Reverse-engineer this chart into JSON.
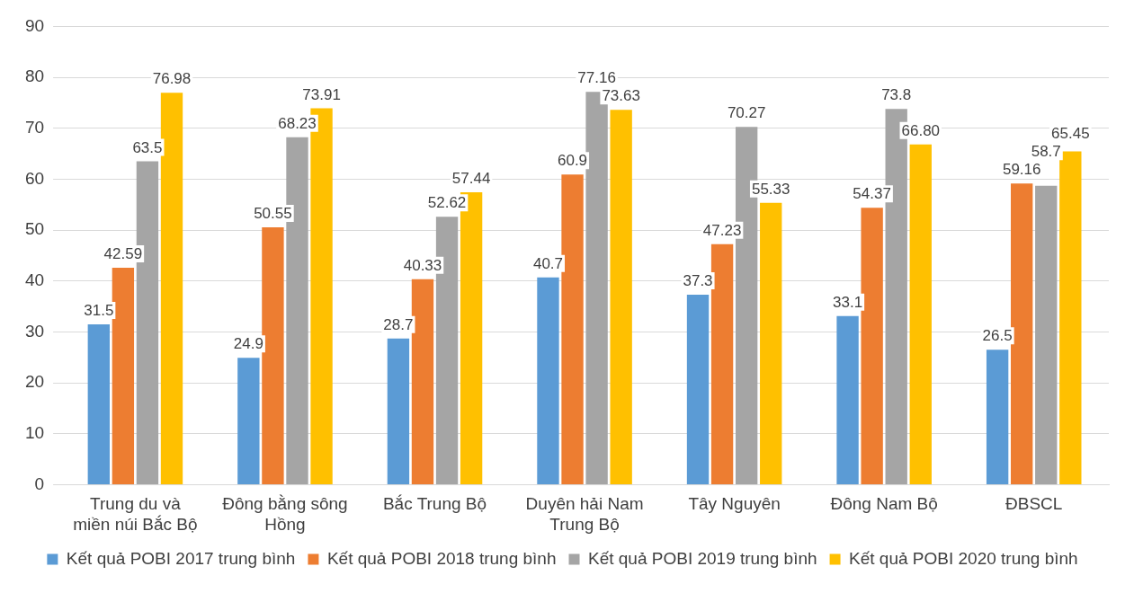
{
  "chart_data": {
    "type": "bar",
    "categories": [
      "Trung du và miền núi Bắc Bộ",
      "Đông bằng sông Hồng",
      "Bắc Trung Bộ",
      "Duyên hải Nam Trung Bộ",
      "Tây Nguyên",
      "Đông Nam Bộ",
      "ĐBSCL"
    ],
    "series": [
      {
        "name": "Kết quả POBI 2017 trung bình",
        "color": "#5b9bd5",
        "values": [
          31.5,
          24.9,
          28.7,
          40.7,
          37.3,
          33.1,
          26.5
        ],
        "value_labels": [
          "31.5",
          "24.9",
          "28.7",
          "40.7",
          "37.3",
          "33.1",
          "26.5"
        ]
      },
      {
        "name": "Kết quả POBI 2018 trung bình",
        "color": "#ed7d31",
        "values": [
          42.59,
          50.55,
          40.33,
          60.9,
          47.23,
          54.37,
          59.16
        ],
        "value_labels": [
          "42.59",
          "50.55",
          "40.33",
          "60.9",
          "47.23",
          "54.37",
          "59.16"
        ]
      },
      {
        "name": "Kết quả POBI 2019 trung bình",
        "color": "#a5a5a5",
        "values": [
          63.5,
          68.23,
          52.62,
          77.16,
          70.27,
          73.8,
          58.7
        ],
        "value_labels": [
          "63.5",
          "68.23",
          "52.62",
          "77.16",
          "70.27",
          "73.8",
          "58.7"
        ]
      },
      {
        "name": "Kết quả POBI 2020 trung bình",
        "color": "#ffc000",
        "values": [
          76.98,
          73.91,
          57.44,
          73.63,
          55.33,
          66.8,
          65.45
        ],
        "value_labels": [
          "76.98",
          "73.91",
          "57.44",
          "73.63",
          "55.33",
          "66.80",
          "65.45"
        ]
      }
    ],
    "ylim": [
      0,
      90
    ],
    "yticks": [
      0,
      10,
      20,
      30,
      40,
      50,
      60,
      70,
      80,
      90
    ],
    "grid": "y",
    "legend": "bottom"
  }
}
